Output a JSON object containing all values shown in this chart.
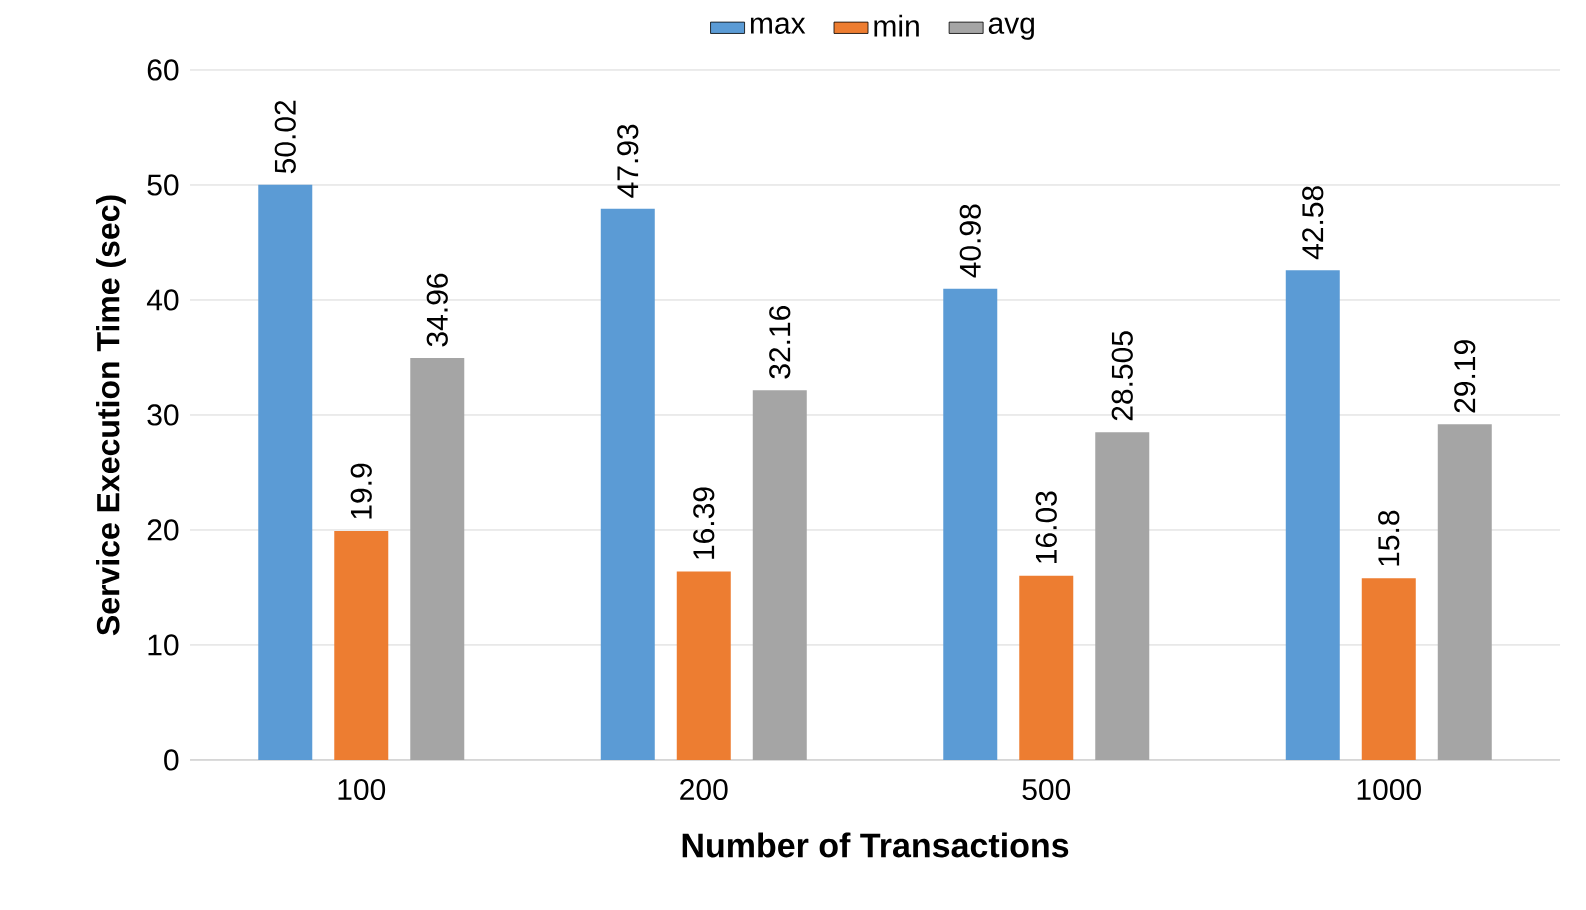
{
  "chart_data": {
    "type": "bar",
    "xlabel": "Number of Transactions",
    "ylabel": "Service Execution Time (sec)",
    "categories": [
      "100",
      "200",
      "500",
      "1000"
    ],
    "series": [
      {
        "name": "max",
        "color": "#5b9bd5",
        "values": [
          50.02,
          47.93,
          40.98,
          42.58
        ]
      },
      {
        "name": "min",
        "color": "#ed7d31",
        "values": [
          19.9,
          16.39,
          16.03,
          15.8
        ]
      },
      {
        "name": "avg",
        "color": "#a5a5a5",
        "values": [
          34.96,
          32.16,
          28.505,
          29.19
        ]
      }
    ],
    "ylim": [
      0,
      60
    ],
    "yticks": [
      0,
      10,
      20,
      30,
      40,
      50,
      60
    ],
    "grid": "y",
    "legend": "top",
    "data_labels": true
  }
}
